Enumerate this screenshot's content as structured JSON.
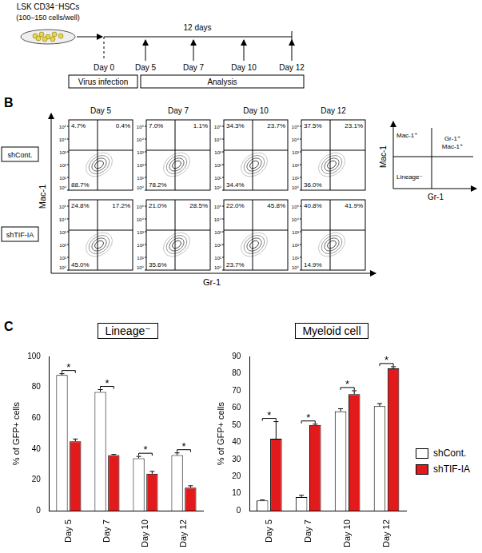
{
  "panel_a": {
    "cells_label": "LSK CD34⁻HSCs",
    "cells_count": "(100–150 cells/well)",
    "duration": "12 days",
    "days": [
      "Day 0",
      "Day 5",
      "Day 7",
      "Day 10",
      "Day 12"
    ],
    "phases": [
      "Virus infection",
      "Analysis"
    ]
  },
  "panel_b": {
    "label": "B",
    "columns": [
      "Day 5",
      "Day 7",
      "Day 10",
      "Day 12"
    ],
    "x_label": "Gr-1",
    "y_label": "Mac-1",
    "tick_labels": [
      "10⁰",
      "10¹",
      "10²",
      "10³",
      "10⁴",
      "10⁵"
    ],
    "rows": [
      {
        "name": "shCont.",
        "plots": [
          {
            "upper_left": "4.7%",
            "upper_right": "0.4%",
            "lower_left": "88.7%"
          },
          {
            "upper_left": "7.0%",
            "upper_right": "1.1%",
            "lower_left": "78.2%"
          },
          {
            "upper_left": "34.3%",
            "upper_right": "23.7%",
            "lower_left": "34.4%"
          },
          {
            "upper_left": "37.5%",
            "upper_right": "23.1%",
            "lower_left": "36.0%"
          }
        ]
      },
      {
        "name": "shTIF-IA",
        "plots": [
          {
            "upper_left": "24.8%",
            "upper_right": "17.2%",
            "lower_left": "45.0%"
          },
          {
            "upper_left": "21.0%",
            "upper_right": "28.5%",
            "lower_left": "35.6%"
          },
          {
            "upper_left": "22.0%",
            "upper_right": "45.8%",
            "lower_left": "23.7%"
          },
          {
            "upper_left": "40.8%",
            "upper_right": "41.9%",
            "lower_left": "14.9%"
          }
        ]
      }
    ],
    "key": {
      "upper_left": "Mac-1⁺",
      "upper_right": [
        "Gr-1⁺",
        "Mac-1⁺"
      ],
      "lower_left": "Lineage⁻",
      "x_label": "Gr-1",
      "y_label": "Mac-1"
    }
  },
  "panel_c_label": "C",
  "chart_data": [
    {
      "type": "bar",
      "title": "Lineage⁻",
      "ylabel": "% of GFP+ cells",
      "categories": [
        "Day 5",
        "Day 7",
        "Day 10",
        "Day 12"
      ],
      "series": [
        {
          "name": "shCont.",
          "color": "#ffffff",
          "values": [
            88,
            77,
            34,
            36
          ],
          "errors": [
            0.8,
            1.5,
            1.2,
            1.5
          ]
        },
        {
          "name": "shTIF-IA",
          "color": "#e31a1c",
          "values": [
            45,
            36,
            24,
            15
          ],
          "errors": [
            1.5,
            0.5,
            1.5,
            1.2
          ]
        }
      ],
      "significance": [
        "*",
        "*",
        "*",
        "*"
      ],
      "ylim": [
        0,
        100
      ],
      "yticks": [
        0,
        20,
        40,
        60,
        80,
        100
      ],
      "grid": false
    },
    {
      "type": "bar",
      "title": "Myeloid cell",
      "ylabel": "% of GFP+ cells",
      "categories": [
        "Day 5",
        "Day 7",
        "Day 10",
        "Day 12"
      ],
      "series": [
        {
          "name": "shCont.",
          "color": "#ffffff",
          "values": [
            6,
            8,
            58,
            61
          ],
          "errors": [
            0.3,
            1.0,
            1.5,
            1.5
          ]
        },
        {
          "name": "shTIF-IA",
          "color": "#e31a1c",
          "values": [
            42,
            50,
            68,
            83
          ],
          "errors": [
            10,
            0.5,
            2,
            1.0
          ]
        }
      ],
      "significance": [
        "*",
        "*",
        "*",
        "*"
      ],
      "ylim": [
        0,
        90
      ],
      "yticks": [
        0,
        10,
        20,
        30,
        40,
        50,
        60,
        70,
        80,
        90
      ],
      "grid": false,
      "legend": "right"
    }
  ]
}
